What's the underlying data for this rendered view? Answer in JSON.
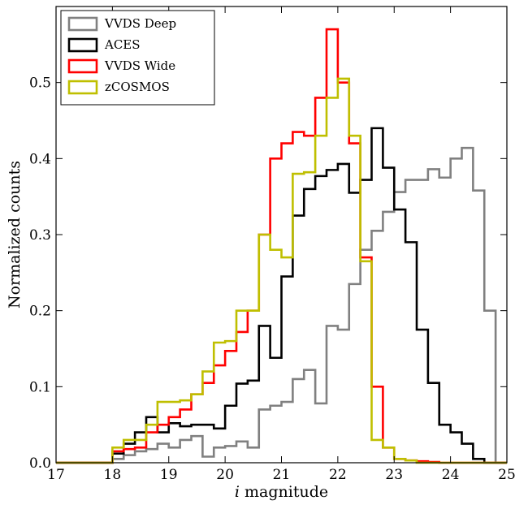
{
  "chart_data": {
    "type": "line",
    "step": true,
    "title": "",
    "xlabel": "i",
    "xlabel_suffix": " magnitude",
    "ylabel": "Normalized counts",
    "xlim": [
      17,
      25
    ],
    "ylim": [
      0.0,
      0.6
    ],
    "xticks": [
      17,
      18,
      19,
      20,
      21,
      22,
      23,
      24,
      25
    ],
    "yticks": [
      0.0,
      0.1,
      0.2,
      0.3,
      0.4,
      0.5
    ],
    "xtick_labels": [
      "17",
      "18",
      "19",
      "20",
      "21",
      "22",
      "23",
      "24",
      "25"
    ],
    "ytick_labels": [
      "0.0",
      "0.1",
      "0.2",
      "0.3",
      "0.4",
      "0.5"
    ],
    "grid": false,
    "legend_position": "top-left",
    "bin_edges": [
      17.0,
      17.2,
      17.4,
      17.6,
      17.8,
      18.0,
      18.2,
      18.4,
      18.6,
      18.8,
      19.0,
      19.2,
      19.4,
      19.6,
      19.8,
      20.0,
      20.2,
      20.4,
      20.6,
      20.8,
      21.0,
      21.2,
      21.4,
      21.6,
      21.8,
      22.0,
      22.2,
      22.4,
      22.6,
      22.8,
      23.0,
      23.2,
      23.4,
      23.6,
      23.8,
      24.0,
      24.2,
      24.4,
      24.6,
      24.8,
      25.0
    ],
    "series": [
      {
        "name": "VVDS Deep",
        "color": "#808080",
        "values": [
          0,
          0,
          0,
          0,
          0,
          0.005,
          0.01,
          0.015,
          0.018,
          0.025,
          0.02,
          0.03,
          0.035,
          0.008,
          0.02,
          0.022,
          0.028,
          0.02,
          0.07,
          0.075,
          0.08,
          0.11,
          0.122,
          0.078,
          0.18,
          0.175,
          0.235,
          0.28,
          0.305,
          0.33,
          0.356,
          0.372,
          0.372,
          0.386,
          0.375,
          0.4,
          0.414,
          0.358,
          0.2,
          0
        ]
      },
      {
        "name": "ACES",
        "color": "#000000",
        "values": [
          0,
          0,
          0,
          0,
          0,
          0.012,
          0.025,
          0.04,
          0.06,
          0.04,
          0.052,
          0.048,
          0.05,
          0.05,
          0.045,
          0.075,
          0.104,
          0.108,
          0.18,
          0.138,
          0.245,
          0.325,
          0.36,
          0.377,
          0.385,
          0.393,
          0.355,
          0.372,
          0.44,
          0.388,
          0.333,
          0.29,
          0.175,
          0.105,
          0.05,
          0.04,
          0.025,
          0.005,
          0,
          0
        ]
      },
      {
        "name": "VVDS Wide",
        "color": "#ff0000",
        "values": [
          0,
          0,
          0,
          0,
          0,
          0.015,
          0.018,
          0.02,
          0.04,
          0.05,
          0.06,
          0.07,
          0.09,
          0.105,
          0.128,
          0.147,
          0.172,
          0.2,
          0.3,
          0.4,
          0.42,
          0.435,
          0.43,
          0.48,
          0.57,
          0.5,
          0.42,
          0.27,
          0.1,
          0.02,
          0.005,
          0.003,
          0.002,
          0.001,
          0,
          0,
          0,
          0,
          0,
          0
        ]
      },
      {
        "name": "zCOSMOS",
        "color": "#bfbf00",
        "values": [
          0,
          0,
          0,
          0,
          0,
          0.02,
          0.03,
          0.03,
          0.05,
          0.08,
          0.08,
          0.082,
          0.09,
          0.12,
          0.158,
          0.16,
          0.2,
          0.2,
          0.3,
          0.28,
          0.27,
          0.38,
          0.382,
          0.43,
          0.48,
          0.505,
          0.43,
          0.265,
          0.03,
          0.02,
          0.005,
          0.003,
          0,
          0,
          0,
          0,
          0,
          0,
          0,
          0
        ]
      }
    ]
  }
}
